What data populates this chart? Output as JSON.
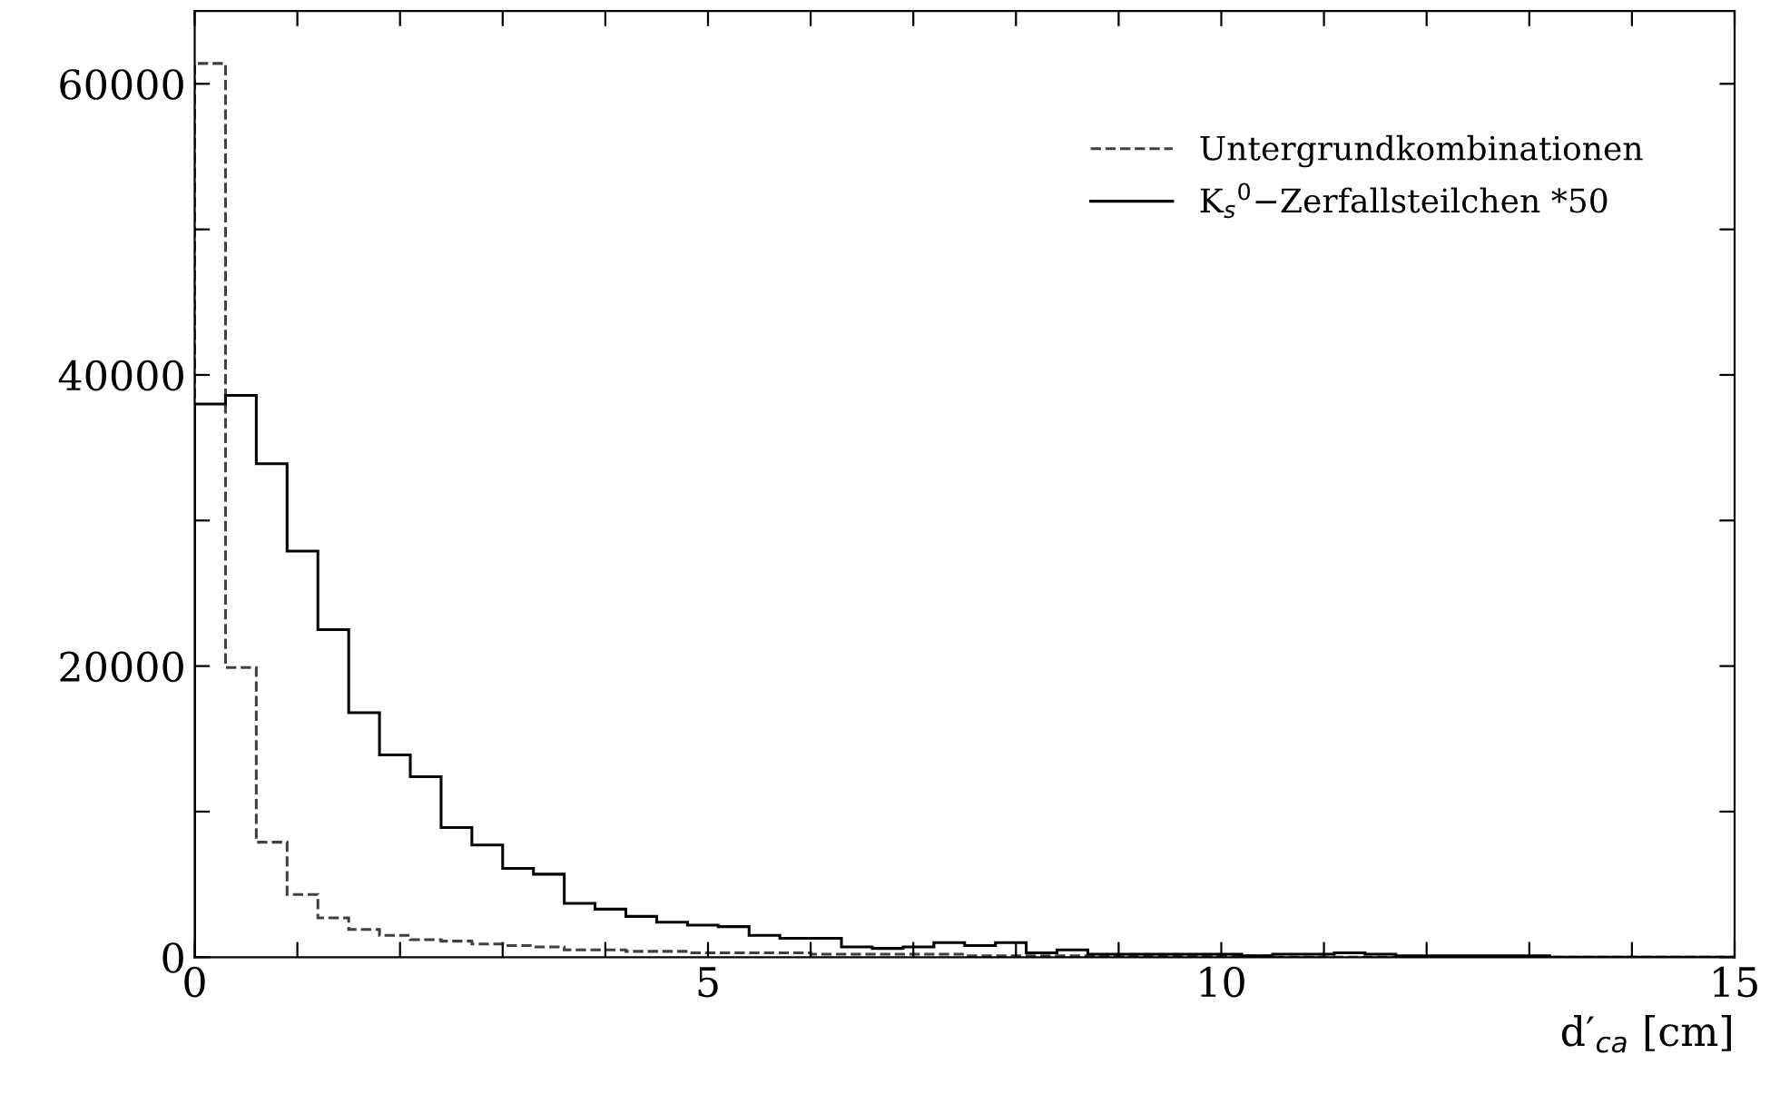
{
  "chart_data": {
    "type": "histogram",
    "xlabel": "d′$_{ca}$ [cm]",
    "bins": [
      0,
      0.3,
      0.6,
      0.9,
      1.2,
      1.5,
      1.8,
      2.1,
      2.4,
      2.7,
      3.0,
      3.3,
      3.6,
      3.9,
      4.2,
      4.5,
      4.8,
      5.1,
      5.4,
      5.7,
      6.0,
      6.3,
      6.6,
      6.9,
      7.2,
      7.5,
      7.8,
      8.1,
      8.4,
      8.7,
      9.0,
      9.3,
      9.6,
      9.9,
      10.2,
      10.5,
      10.8,
      11.1,
      11.4,
      11.7,
      12.0,
      12.3,
      12.6,
      12.9,
      13.2,
      13.5,
      13.8,
      14.1,
      14.4,
      14.7,
      15.0
    ],
    "series": [
      {
        "name": "Untergrundkombinationen",
        "color": "#404040",
        "line_style": "dashed",
        "values": [
          61400,
          19900,
          7900,
          4300,
          2700,
          1900,
          1500,
          1200,
          1100,
          900,
          800,
          700,
          500,
          500,
          400,
          400,
          300,
          300,
          300,
          300,
          200,
          200,
          200,
          200,
          200,
          100,
          100,
          100,
          100,
          100,
          100,
          100,
          100,
          100,
          100,
          0,
          0,
          0,
          0,
          0,
          0,
          0,
          0,
          0,
          0,
          0,
          0,
          0,
          0,
          0
        ]
      },
      {
        "name": "K$_{s}$$^{0}$−Zerfallsteilchen *50",
        "color": "#000000",
        "line_style": "solid",
        "values": [
          38000,
          38600,
          33900,
          27900,
          22500,
          16800,
          13900,
          12400,
          8900,
          7700,
          6100,
          5700,
          3700,
          3300,
          2800,
          2400,
          2200,
          2100,
          1500,
          1300,
          1300,
          700,
          600,
          700,
          1000,
          800,
          1000,
          300,
          500,
          200,
          200,
          200,
          200,
          200,
          100,
          200,
          200,
          300,
          200,
          100,
          100,
          100,
          100,
          100,
          0,
          0,
          0,
          0,
          0,
          0
        ]
      }
    ],
    "xlim": [
      0,
      15
    ],
    "ylim": [
      0,
      65000
    ],
    "xticks": [
      0,
      {
        "value": 1,
        "label": null
      },
      {
        "value": 2,
        "label": null
      },
      {
        "value": 3,
        "label": null
      },
      {
        "value": 4,
        "label": null
      },
      5,
      {
        "value": 6,
        "label": null
      },
      {
        "value": 7,
        "label": null
      },
      {
        "value": 8,
        "label": null
      },
      {
        "value": 9,
        "label": null
      },
      10,
      {
        "value": 11,
        "label": null
      },
      {
        "value": 12,
        "label": null
      },
      {
        "value": 13,
        "label": null
      },
      {
        "value": 14,
        "label": null
      },
      15
    ],
    "yticks": [
      0,
      {
        "value": 10000,
        "label": null
      },
      20000,
      {
        "value": 30000,
        "label": null
      },
      40000,
      {
        "value": 50000,
        "label": null
      },
      60000
    ],
    "legend": "top right",
    "grid": false
  }
}
